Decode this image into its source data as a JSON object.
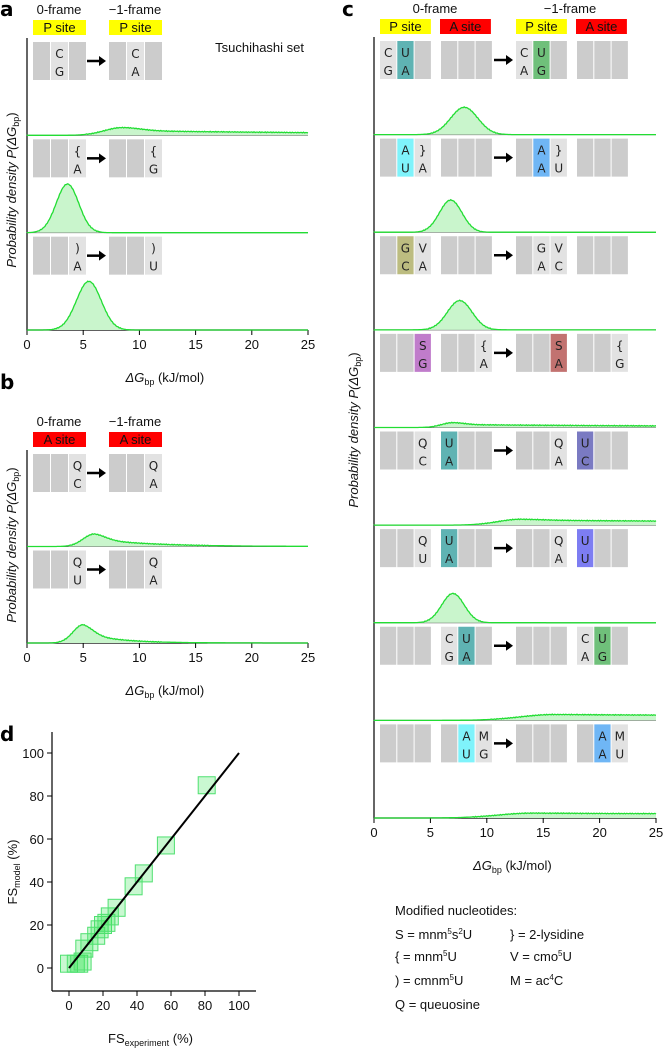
{
  "colors": {
    "curve": "#22dd33",
    "fill": "#c9f5cc",
    "box_empty": "#cccccc",
    "box_letter": "#e2e2e2",
    "p_site": "#ffff00",
    "a_site": "#ff0000",
    "teal": "#5fb3b3",
    "green": "#6fc07a",
    "cyan": "#7ff3fb",
    "blue": "#6fb6f5",
    "olive": "#bcbc80",
    "purple": "#c07ccb",
    "red_brown": "#c27270",
    "slate": "#7a7ac2",
    "violet": "#7d7df2"
  },
  "panels": {
    "a": {
      "label": "a",
      "frame0": "0-frame",
      "frame1": "−1-frame",
      "site_labels": [
        "P site"
      ],
      "legend": "Tsuchihashi set",
      "xlabel": "ΔG",
      "xlabel_sub": "bp",
      "xlabel_unit": " (kJ/mol)",
      "ylabel": "Probability density P(ΔG",
      "ylabel_sub": "bp",
      "ylabel_end": ")"
    },
    "b": {
      "label": "b",
      "frame0": "0-frame",
      "frame1": "−1-frame",
      "site_labels": [
        "A site"
      ],
      "xlabel": "ΔG",
      "xlabel_sub": "bp",
      "xlabel_unit": " (kJ/mol)",
      "ylabel": "Probability density P(ΔG",
      "ylabel_sub": "bp",
      "ylabel_end": ")"
    },
    "c": {
      "label": "c",
      "frame0": "0-frame",
      "frame1": "−1-frame",
      "site_labels": [
        "P site",
        "A site"
      ],
      "xlabel": "ΔG",
      "xlabel_sub": "bp",
      "xlabel_unit": " (kJ/mol)",
      "ylabel": "Probability density P(ΔG",
      "ylabel_sub": "bp",
      "ylabel_end": ")"
    },
    "d": {
      "label": "d",
      "xlabel": "FS",
      "xlabel_sub": "experiment",
      "xlabel_unit": " (%)",
      "ylabel": "FS",
      "ylabel_sub": "model",
      "ylabel_unit": " (%)"
    }
  },
  "legend": {
    "title": "Modified nucleotides:",
    "items": [
      {
        "sym": "S = mnm",
        "sup": "5",
        "rest": "s",
        "sup2": "2",
        "rest2": "U"
      },
      {
        "sym": "} = 2-lysidine"
      },
      {
        "sym": "{ = mnm",
        "sup": "5",
        "rest": "U"
      },
      {
        "sym": "V = cmo",
        "sup": "5",
        "rest": "U"
      },
      {
        "sym": ") = cmnm",
        "sup": "5",
        "rest": "U"
      },
      {
        "sym": "M = ac",
        "sup": "4",
        "rest": "C"
      },
      {
        "sym": "Q = queuosine"
      }
    ]
  },
  "chart_data": [
    {
      "panel": "a",
      "type": "area",
      "xlim": [
        0,
        25
      ],
      "xticks": [
        0,
        5,
        10,
        15,
        20,
        25
      ],
      "rows": [
        {
          "from": [
            [
              "",
              ""
            ],
            [
              "C",
              "G"
            ],
            [
              "",
              ""
            ]
          ],
          "to": [
            [
              "",
              ""
            ],
            [
              "C",
              "A"
            ],
            [
              "",
              ""
            ]
          ],
          "curve": {
            "mode": 8.5,
            "sd": 1.6,
            "height": 0.08,
            "tail": 0.6,
            "decay": 30
          }
        },
        {
          "from": [
            [
              "",
              ""
            ],
            [
              "",
              ""
            ],
            [
              "{",
              "A"
            ]
          ],
          "to": [
            [
              "",
              ""
            ],
            [
              "",
              ""
            ],
            [
              "{",
              "G"
            ]
          ],
          "curve": {
            "mode": 3.6,
            "sd": 1.0,
            "height": 0.5,
            "tail": 0,
            "decay": 1
          }
        },
        {
          "from": [
            [
              "",
              ""
            ],
            [
              "",
              ""
            ],
            [
              ")",
              "A"
            ]
          ],
          "to": [
            [
              "",
              ""
            ],
            [
              "",
              ""
            ],
            [
              ")",
              "U"
            ]
          ],
          "curve": {
            "mode": 5.5,
            "sd": 1.1,
            "height": 0.5,
            "tail": 0,
            "decay": 1
          }
        }
      ]
    },
    {
      "panel": "b",
      "type": "area",
      "xlim": [
        0,
        25
      ],
      "xticks": [
        0,
        5,
        10,
        15,
        20,
        25
      ],
      "rows": [
        {
          "from": [
            [
              "",
              ""
            ],
            [
              "",
              ""
            ],
            [
              "Q",
              "C"
            ]
          ],
          "to": [
            [
              "",
              ""
            ],
            [
              "",
              ""
            ],
            [
              "Q",
              "A"
            ]
          ],
          "curve": {
            "mode": 6,
            "sd": 1.0,
            "height": 0.13,
            "tail": 0.6,
            "decay": 5
          }
        },
        {
          "from": [
            [
              "",
              ""
            ],
            [
              "",
              ""
            ],
            [
              "Q",
              "U"
            ]
          ],
          "to": [
            [
              "",
              ""
            ],
            [
              "",
              ""
            ],
            [
              "Q",
              "A"
            ]
          ],
          "curve": {
            "mode": 5,
            "sd": 0.9,
            "height": 0.19,
            "tail": 0.55,
            "decay": 3
          }
        }
      ]
    },
    {
      "panel": "c",
      "type": "area",
      "xlim": [
        0,
        25
      ],
      "xticks": [
        0,
        5,
        10,
        15,
        20,
        25
      ],
      "rows": [
        {
          "from": [
            [
              "C",
              "G"
            ],
            [
              "U",
              "A",
              "teal"
            ],
            [
              "",
              ""
            ],
            [
              "",
              ""
            ],
            [
              "",
              ""
            ],
            [
              "",
              ""
            ]
          ],
          "to": [
            [
              "C",
              "A"
            ],
            [
              "U",
              "G",
              "green"
            ],
            [
              "",
              ""
            ],
            [
              "",
              ""
            ],
            [
              "",
              ""
            ],
            [
              "",
              ""
            ]
          ],
          "curve": {
            "mode": 8,
            "sd": 1.2,
            "height": 0.28,
            "tail": 0,
            "decay": 1
          }
        },
        {
          "from": [
            [
              "",
              ""
            ],
            [
              "A",
              "U",
              "cyan"
            ],
            [
              "}",
              "A"
            ],
            [
              "",
              ""
            ],
            [
              "",
              ""
            ],
            [
              "",
              ""
            ]
          ],
          "to": [
            [
              "",
              ""
            ],
            [
              "A",
              "A",
              "blue"
            ],
            [
              "}",
              "U"
            ],
            [
              "",
              ""
            ],
            [
              "",
              ""
            ],
            [
              "",
              ""
            ]
          ],
          "curve": {
            "mode": 6.8,
            "sd": 1.0,
            "height": 0.33,
            "tail": 0,
            "decay": 1
          }
        },
        {
          "from": [
            [
              "",
              ""
            ],
            [
              "G",
              "C",
              "olive"
            ],
            [
              "V",
              "A"
            ],
            [
              "",
              ""
            ],
            [
              "",
              ""
            ],
            [
              "",
              ""
            ]
          ],
          "to": [
            [
              "",
              ""
            ],
            [
              "G",
              "A"
            ],
            [
              "V",
              "C"
            ],
            [
              "",
              ""
            ],
            [
              "",
              ""
            ],
            [
              "",
              ""
            ]
          ],
          "curve": {
            "mode": 7.6,
            "sd": 1.1,
            "height": 0.3,
            "tail": 0,
            "decay": 1
          }
        },
        {
          "from": [
            [
              "",
              ""
            ],
            [
              "",
              ""
            ],
            [
              "S",
              "G",
              "purple"
            ],
            [
              "",
              ""
            ],
            [
              "",
              ""
            ],
            [
              "{",
              "A"
            ]
          ],
          "to": [
            [
              "",
              ""
            ],
            [
              "",
              ""
            ],
            [
              "S",
              "A",
              "red_brown"
            ],
            [
              "",
              ""
            ],
            [
              "",
              ""
            ],
            [
              "{",
              "G"
            ]
          ],
          "curve": {
            "mode": 7,
            "sd": 1.0,
            "height": 0.05,
            "tail": 0.6,
            "decay": 30
          }
        },
        {
          "from": [
            [
              "",
              ""
            ],
            [
              "",
              ""
            ],
            [
              "Q",
              "C"
            ],
            [
              "U",
              "A",
              "teal"
            ],
            [
              "",
              ""
            ],
            [
              "",
              ""
            ]
          ],
          "to": [
            [
              "",
              ""
            ],
            [
              "",
              ""
            ],
            [
              "Q",
              "A"
            ],
            [
              "U",
              "C",
              "slate"
            ],
            [
              "",
              ""
            ],
            [
              "",
              ""
            ]
          ],
          "curve": {
            "mode": 13,
            "sd": 2.0,
            "height": 0.06,
            "tail": 0.85,
            "decay": 60
          }
        },
        {
          "from": [
            [
              "",
              ""
            ],
            [
              "",
              ""
            ],
            [
              "Q",
              "U"
            ],
            [
              "U",
              "A",
              "teal"
            ],
            [
              "",
              ""
            ],
            [
              "",
              ""
            ]
          ],
          "to": [
            [
              "",
              ""
            ],
            [
              "",
              ""
            ],
            [
              "Q",
              "A"
            ],
            [
              "U",
              "U",
              "violet"
            ],
            [
              "",
              ""
            ],
            [
              "",
              ""
            ]
          ],
          "curve": {
            "mode": 7,
            "sd": 1.0,
            "height": 0.3,
            "tail": 0,
            "decay": 1
          }
        },
        {
          "from": [
            [
              "",
              ""
            ],
            [
              "",
              ""
            ],
            [
              "",
              ""
            ],
            [
              "C",
              "G"
            ],
            [
              "U",
              "A",
              "teal"
            ],
            [
              "",
              ""
            ]
          ],
          "to": [
            [
              "",
              ""
            ],
            [
              "",
              ""
            ],
            [
              "",
              ""
            ],
            [
              "C",
              "A"
            ],
            [
              "U",
              "G",
              "green"
            ],
            [
              "",
              ""
            ]
          ],
          "curve": {
            "mode": 16,
            "sd": 3.0,
            "height": 0.06,
            "tail": 0.95,
            "decay": 200
          }
        },
        {
          "from": [
            [
              "",
              ""
            ],
            [
              "",
              ""
            ],
            [
              "",
              ""
            ],
            [
              "",
              ""
            ],
            [
              "A",
              "U",
              "cyan"
            ],
            [
              "M",
              "G"
            ]
          ],
          "to": [
            [
              "",
              ""
            ],
            [
              "",
              ""
            ],
            [
              "",
              ""
            ],
            [
              "",
              ""
            ],
            [
              "A",
              "A",
              "blue"
            ],
            [
              "M",
              "U"
            ]
          ],
          "curve": {
            "mode": 14,
            "sd": 3.0,
            "height": 0.05,
            "tail": 0.95,
            "decay": 200
          }
        }
      ]
    },
    {
      "panel": "d",
      "type": "scatter",
      "xlim": [
        -10,
        110
      ],
      "ylim": [
        -10,
        110
      ],
      "xticks": [
        0,
        20,
        40,
        60,
        80,
        100
      ],
      "yticks": [
        0,
        20,
        40,
        60,
        80,
        100
      ],
      "points": [
        [
          0,
          2
        ],
        [
          4,
          2
        ],
        [
          6,
          2
        ],
        [
          8,
          3
        ],
        [
          9,
          9
        ],
        [
          12,
          12
        ],
        [
          16,
          15
        ],
        [
          18,
          18
        ],
        [
          20,
          20
        ],
        [
          22,
          21
        ],
        [
          24,
          24
        ],
        [
          28,
          28
        ],
        [
          38,
          38
        ],
        [
          44,
          44
        ],
        [
          57,
          57
        ],
        [
          81,
          85
        ]
      ],
      "fit_line": [
        [
          0,
          0
        ],
        [
          100,
          100
        ]
      ]
    }
  ]
}
